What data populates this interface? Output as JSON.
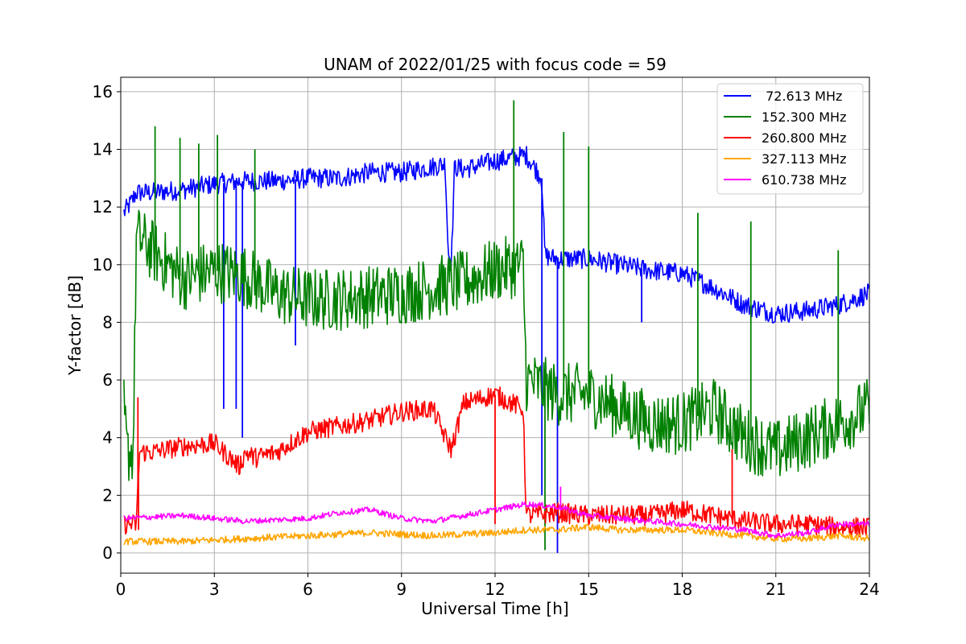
{
  "chart_data": {
    "type": "line",
    "title": "UNAM of 2022/01/25 with focus code = 59",
    "xlabel": "Universal Time [h]",
    "ylabel": "Y-factor [dB]",
    "xlim": [
      0,
      24
    ],
    "ylim": [
      -0.7,
      16.5
    ],
    "xticks": [
      0,
      3,
      6,
      9,
      12,
      15,
      18,
      21,
      24
    ],
    "yticks": [
      0,
      2,
      4,
      6,
      8,
      10,
      12,
      14,
      16
    ],
    "grid": true,
    "legend_position": "top-right",
    "series": [
      {
        "name": " 72.613 MHz",
        "color": "#0000ff",
        "noise": 0.35,
        "points": [
          [
            0.1,
            11.8
          ],
          [
            0.3,
            12.1
          ],
          [
            0.5,
            12.5
          ],
          [
            1,
            12.5
          ],
          [
            2,
            12.6
          ],
          [
            3,
            12.8
          ],
          [
            4,
            12.9
          ],
          [
            5,
            12.9
          ],
          [
            6,
            13.0
          ],
          [
            7,
            13.0
          ],
          [
            8,
            13.2
          ],
          [
            9,
            13.2
          ],
          [
            10,
            13.4
          ],
          [
            10.4,
            13.5
          ],
          [
            10.5,
            10.4
          ],
          [
            10.6,
            10.1
          ],
          [
            10.7,
            13.4
          ],
          [
            11,
            13.3
          ],
          [
            12,
            13.6
          ],
          [
            13,
            13.8
          ],
          [
            13.5,
            13.0
          ],
          [
            13.6,
            10.3
          ],
          [
            14,
            10.2
          ],
          [
            15,
            10.2
          ],
          [
            16,
            10.0
          ],
          [
            17,
            9.8
          ],
          [
            18,
            9.7
          ],
          [
            19,
            9.2
          ],
          [
            20,
            8.6
          ],
          [
            21,
            8.3
          ],
          [
            22,
            8.4
          ],
          [
            23,
            8.6
          ],
          [
            24,
            9.0
          ]
        ],
        "spikes": [
          [
            3.3,
            5.0
          ],
          [
            3.7,
            5.0
          ],
          [
            3.9,
            4.0
          ],
          [
            5.6,
            7.2
          ],
          [
            13.5,
            2.0
          ],
          [
            14.0,
            0.0
          ],
          [
            16.7,
            8.0
          ]
        ]
      },
      {
        "name": "152.300 MHz",
        "color": "#008000",
        "noise": 1.1,
        "points": [
          [
            0.1,
            5.0
          ],
          [
            0.2,
            3.5
          ],
          [
            0.4,
            3.5
          ],
          [
            0.5,
            11.0
          ],
          [
            1,
            10.5
          ],
          [
            2,
            9.5
          ],
          [
            3,
            9.8
          ],
          [
            4,
            9.6
          ],
          [
            5,
            9.0
          ],
          [
            6,
            8.8
          ],
          [
            7,
            8.8
          ],
          [
            8,
            8.9
          ],
          [
            9,
            9.0
          ],
          [
            10,
            9.2
          ],
          [
            11,
            9.4
          ],
          [
            12,
            9.8
          ],
          [
            12.9,
            10.0
          ],
          [
            13,
            6.0
          ],
          [
            14,
            5.5
          ],
          [
            15,
            5.5
          ],
          [
            16,
            5.0
          ],
          [
            17,
            4.5
          ],
          [
            18,
            4.5
          ],
          [
            19,
            5.0
          ],
          [
            20,
            4.0
          ],
          [
            21,
            3.5
          ],
          [
            22,
            4.0
          ],
          [
            23,
            4.5
          ],
          [
            24,
            5.0
          ]
        ],
        "spikes": [
          [
            1.1,
            14.8
          ],
          [
            1.9,
            14.4
          ],
          [
            2.5,
            14.2
          ],
          [
            3.1,
            14.5
          ],
          [
            4.3,
            14.0
          ],
          [
            12.6,
            15.7
          ],
          [
            13.6,
            0.1
          ],
          [
            14.2,
            14.6
          ],
          [
            15.0,
            14.1
          ],
          [
            18.5,
            11.8
          ],
          [
            20.2,
            11.5
          ],
          [
            23.0,
            10.5
          ]
        ]
      },
      {
        "name": "260.800 MHz",
        "color": "#ff0000",
        "noise": 0.35,
        "points": [
          [
            0.1,
            1.0
          ],
          [
            0.5,
            1.0
          ],
          [
            0.6,
            3.5
          ],
          [
            1,
            3.5
          ],
          [
            2,
            3.7
          ],
          [
            3,
            3.8
          ],
          [
            3.8,
            3.0
          ],
          [
            4.0,
            3.5
          ],
          [
            4.3,
            3.3
          ],
          [
            5,
            3.5
          ],
          [
            6,
            4.2
          ],
          [
            7,
            4.4
          ],
          [
            8,
            4.6
          ],
          [
            9,
            4.9
          ],
          [
            10,
            5.0
          ],
          [
            10.4,
            4.0
          ],
          [
            10.6,
            3.6
          ],
          [
            11,
            5.2
          ],
          [
            12,
            5.5
          ],
          [
            12.9,
            5.0
          ],
          [
            13,
            1.3
          ],
          [
            14,
            1.4
          ],
          [
            15,
            1.3
          ],
          [
            16,
            1.3
          ],
          [
            17,
            1.3
          ],
          [
            18,
            1.5
          ],
          [
            19,
            1.3
          ],
          [
            20,
            1.1
          ],
          [
            21,
            1.0
          ],
          [
            22,
            1.0
          ],
          [
            23,
            0.9
          ],
          [
            24,
            0.9
          ]
        ],
        "spikes": [
          [
            0.55,
            5.4
          ],
          [
            0.57,
            0.8
          ],
          [
            12.0,
            1.0
          ],
          [
            19.6,
            3.6
          ]
        ]
      },
      {
        "name": "327.113 MHz",
        "color": "#ffa500",
        "noise": 0.12,
        "points": [
          [
            0.1,
            0.4
          ],
          [
            2,
            0.4
          ],
          [
            4,
            0.5
          ],
          [
            6,
            0.6
          ],
          [
            8,
            0.7
          ],
          [
            10,
            0.6
          ],
          [
            12,
            0.7
          ],
          [
            13,
            0.8
          ],
          [
            14,
            0.8
          ],
          [
            15,
            0.9
          ],
          [
            16,
            0.8
          ],
          [
            17,
            0.8
          ],
          [
            18,
            0.8
          ],
          [
            19,
            0.7
          ],
          [
            20,
            0.6
          ],
          [
            21,
            0.5
          ],
          [
            22,
            0.5
          ],
          [
            23,
            0.6
          ],
          [
            24,
            0.5
          ]
        ],
        "spikes": []
      },
      {
        "name": "610.738 MHz",
        "color": "#ff00ff",
        "noise": 0.1,
        "points": [
          [
            0.1,
            1.2
          ],
          [
            2,
            1.3
          ],
          [
            4,
            1.1
          ],
          [
            6,
            1.2
          ],
          [
            7,
            1.4
          ],
          [
            8,
            1.5
          ],
          [
            9,
            1.2
          ],
          [
            10,
            1.1
          ],
          [
            11,
            1.3
          ],
          [
            12,
            1.5
          ],
          [
            13,
            1.7
          ],
          [
            14,
            1.6
          ],
          [
            15,
            1.3
          ],
          [
            16,
            1.2
          ],
          [
            17,
            1.1
          ],
          [
            18,
            1.0
          ],
          [
            19,
            0.9
          ],
          [
            20,
            0.8
          ],
          [
            21,
            0.6
          ],
          [
            22,
            0.7
          ],
          [
            23,
            1.0
          ],
          [
            24,
            1.0
          ]
        ],
        "spikes": [
          [
            14.1,
            2.3
          ]
        ]
      }
    ]
  }
}
